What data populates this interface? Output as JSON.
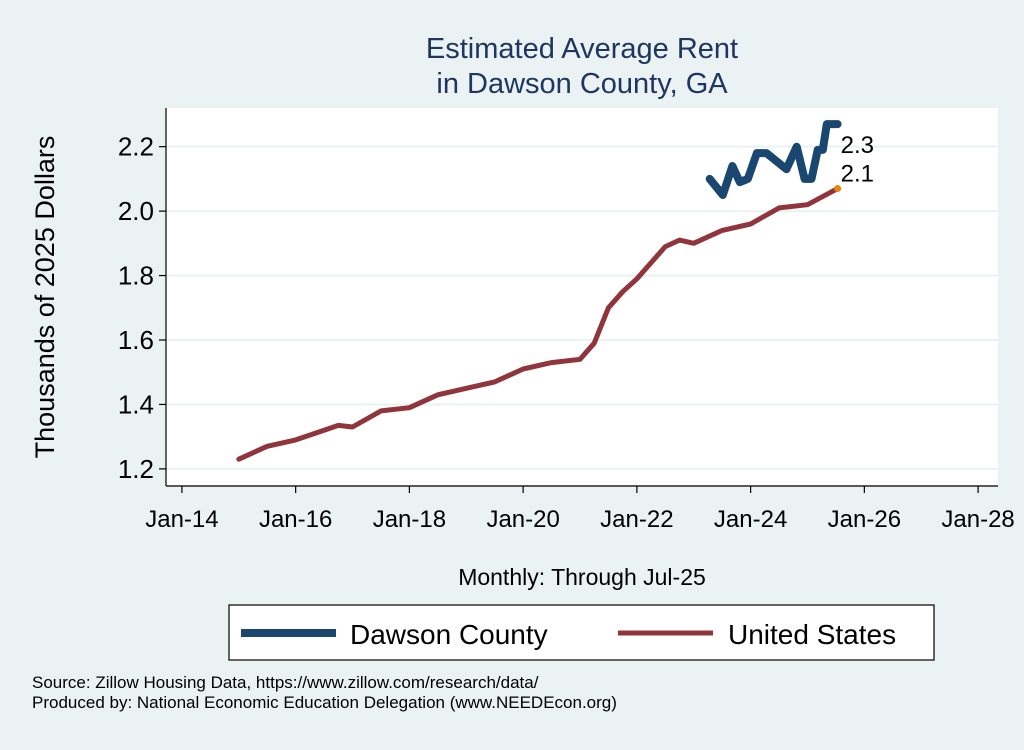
{
  "chart_data": {
    "type": "line",
    "title": [
      "Estimated Average Rent",
      "in Dawson County, GA"
    ],
    "xlabel": "Monthly: Through Jul-25",
    "ylabel": "Thousands of 2025 Dollars",
    "xlim": [
      2013.72,
      2028.35
    ],
    "ylim": [
      1.15,
      2.32
    ],
    "x_ticks": [
      {
        "v": 2014,
        "label": "Jan-14"
      },
      {
        "v": 2016,
        "label": "Jan-16"
      },
      {
        "v": 2018,
        "label": "Jan-18"
      },
      {
        "v": 2020,
        "label": "Jan-20"
      },
      {
        "v": 2022,
        "label": "Jan-22"
      },
      {
        "v": 2024,
        "label": "Jan-24"
      },
      {
        "v": 2026,
        "label": "Jan-26"
      },
      {
        "v": 2028,
        "label": "Jan-28"
      }
    ],
    "y_ticks": [
      {
        "v": 1.2,
        "label": "1.2"
      },
      {
        "v": 1.4,
        "label": "1.4"
      },
      {
        "v": 1.6,
        "label": "1.6"
      },
      {
        "v": 1.8,
        "label": "1.8"
      },
      {
        "v": 2.0,
        "label": "2.0"
      },
      {
        "v": 2.2,
        "label": "2.2"
      }
    ],
    "grid": true,
    "legend_position": "bottom",
    "series": [
      {
        "name": "Dawson County",
        "color": "#1a476f",
        "end_label": "2.3",
        "x": [
          2023.28,
          2023.51,
          2023.68,
          2023.81,
          2023.95,
          2024.11,
          2024.28,
          2024.63,
          2024.81,
          2024.95,
          2025.07,
          2025.18,
          2025.27,
          2025.34,
          2025.53
        ],
        "y": [
          2.1,
          2.05,
          2.14,
          2.09,
          2.1,
          2.18,
          2.18,
          2.13,
          2.2,
          2.1,
          2.1,
          2.19,
          2.19,
          2.27,
          2.27
        ]
      },
      {
        "name": "United States",
        "color": "#90353b",
        "end_label": "2.1",
        "end_marker_color": "#e8830c",
        "x": [
          2015.0,
          2015.5,
          2016.0,
          2016.5,
          2016.75,
          2017.0,
          2017.5,
          2018.0,
          2018.5,
          2019.0,
          2019.5,
          2020.0,
          2020.5,
          2021.0,
          2021.25,
          2021.5,
          2021.75,
          2022.0,
          2022.5,
          2022.75,
          2023.0,
          2023.5,
          2024.0,
          2024.5,
          2025.0,
          2025.53
        ],
        "y": [
          1.23,
          1.27,
          1.29,
          1.32,
          1.335,
          1.33,
          1.38,
          1.39,
          1.43,
          1.45,
          1.47,
          1.51,
          1.53,
          1.54,
          1.59,
          1.7,
          1.75,
          1.79,
          1.89,
          1.91,
          1.9,
          1.94,
          1.96,
          2.01,
          2.02,
          2.07
        ]
      }
    ]
  },
  "footer": {
    "source": "Source: Zillow Housing Data, https://www.zillow.com/research/data/",
    "produced": "Produced by: National Economic Education Delegation (www.NEEDEcon.org)"
  }
}
